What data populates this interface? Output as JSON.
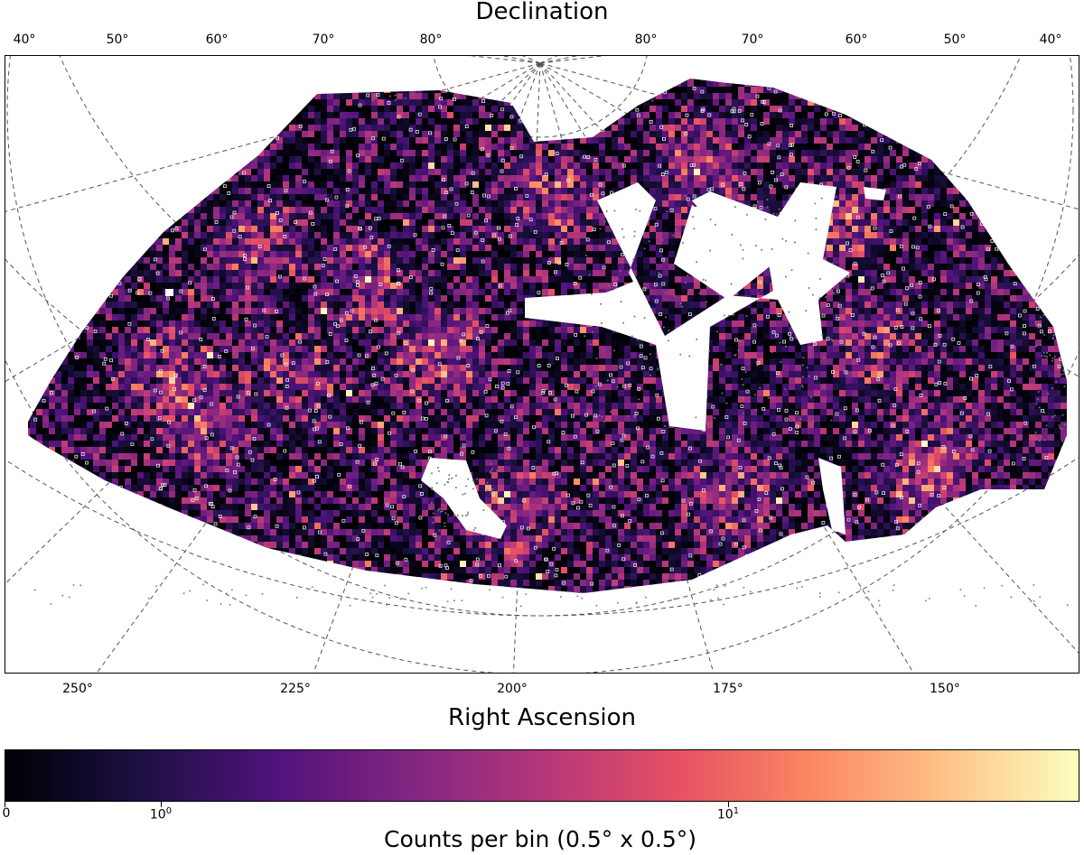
{
  "chart_data": {
    "type": "heatmap",
    "projection": "sky projection (RA / Dec graticule)",
    "top_axis_title": "Declination",
    "bottom_axis_title": "Right Ascension",
    "declination_ticks": [
      "40°",
      "50°",
      "60°",
      "70°",
      "80°",
      "80°",
      "70°",
      "60°",
      "50°",
      "40°"
    ],
    "right_ascension_ticks": [
      "250°",
      "225°",
      "200°",
      "175°",
      "150°"
    ],
    "ra_range_deg": [
      105,
      265
    ],
    "dec_range_deg": [
      40,
      90
    ],
    "grid": true,
    "colorbar": {
      "label": "Counts per bin (0.5° x 0.5°)",
      "scale": "symlog",
      "ticks": [
        "0",
        "10",
        "10"
      ],
      "tick_exponents": [
        "",
        "0",
        "1"
      ],
      "colormap": "magma",
      "colors": [
        "#000004",
        "#1c1044",
        "#4f127b",
        "#812581",
        "#b5367a",
        "#e55064",
        "#fb8761",
        "#fec287",
        "#fcfdbf"
      ]
    },
    "overlay": "white squares mark individual source positions; grey dots outside the binned footprint"
  }
}
